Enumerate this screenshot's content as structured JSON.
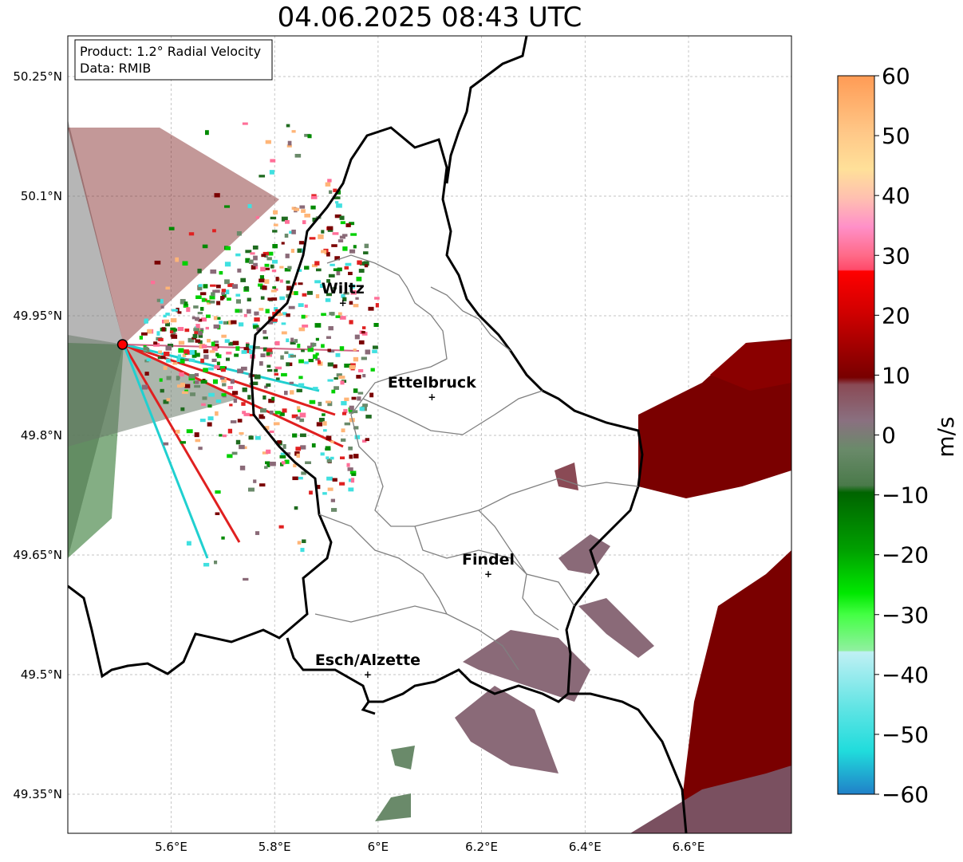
{
  "title": "04.06.2025 08:43 UTC",
  "info_box": {
    "line1": "Product: 1.2° Radial Velocity",
    "line2": "Data: RMIB"
  },
  "map": {
    "lon_range": [
      5.4,
      6.8
    ],
    "lat_range": [
      49.3,
      50.3
    ],
    "lat_ticks": [
      {
        "value": 50.25,
        "label": "50.25°N"
      },
      {
        "value": 50.1,
        "label": "50.1°N"
      },
      {
        "value": 49.95,
        "label": "49.95°N"
      },
      {
        "value": 49.8,
        "label": "49.8°N"
      },
      {
        "value": 49.65,
        "label": "49.65°N"
      },
      {
        "value": 49.5,
        "label": "49.5°N"
      },
      {
        "value": 49.35,
        "label": "49.35°N"
      }
    ],
    "lon_ticks": [
      {
        "value": 5.6,
        "label": "5.6°E"
      },
      {
        "value": 5.8,
        "label": "5.8°E"
      },
      {
        "value": 6.0,
        "label": "6°E"
      },
      {
        "value": 6.2,
        "label": "6.2°E"
      },
      {
        "value": 6.4,
        "label": "6.4°E"
      },
      {
        "value": 6.6,
        "label": "6.6°E"
      }
    ],
    "radar_site": {
      "lon": 5.506,
      "lat": 49.914
    },
    "cities": [
      {
        "name": "Wiltz",
        "lon": 5.932,
        "lat": 49.966
      },
      {
        "name": "Ettelbruck",
        "lon": 6.104,
        "lat": 49.848
      },
      {
        "name": "Findel",
        "lon": 6.213,
        "lat": 49.626
      },
      {
        "name": "Esch/Alzette",
        "lon": 5.98,
        "lat": 49.5
      }
    ]
  },
  "colorbar": {
    "label": "m/s",
    "min": -60,
    "max": 60,
    "ticks": [
      {
        "value": 60,
        "label": "60"
      },
      {
        "value": 50,
        "label": "50"
      },
      {
        "value": 40,
        "label": "40"
      },
      {
        "value": 30,
        "label": "30"
      },
      {
        "value": 20,
        "label": "20"
      },
      {
        "value": 10,
        "label": "10"
      },
      {
        "value": 0,
        "label": "0"
      },
      {
        "value": -10,
        "label": "−10"
      },
      {
        "value": -20,
        "label": "−20"
      },
      {
        "value": -30,
        "label": "−30"
      },
      {
        "value": -40,
        "label": "−40"
      },
      {
        "value": -50,
        "label": "−50"
      },
      {
        "value": -60,
        "label": "−60"
      }
    ],
    "colors_top_to_bottom": [
      "#ff9b55",
      "#ffb577",
      "#ffc888",
      "#ffe099",
      "#ffd0b0",
      "#ffb0b8",
      "#ff8fc8",
      "#ff6f98",
      "#ff4a6a",
      "#ff1a1a",
      "#e00000",
      "#b00000",
      "#800000",
      "#8a4a55",
      "#8a6a78",
      "#808080",
      "#6a8a6a",
      "#4a7a4a",
      "#006400",
      "#008a00",
      "#00b000",
      "#00e000",
      "#44ff44",
      "#88f0a0",
      "#c0f0f0",
      "#80e8e8",
      "#40e0e0",
      "#20c8d8",
      "#2080c8"
    ]
  }
}
